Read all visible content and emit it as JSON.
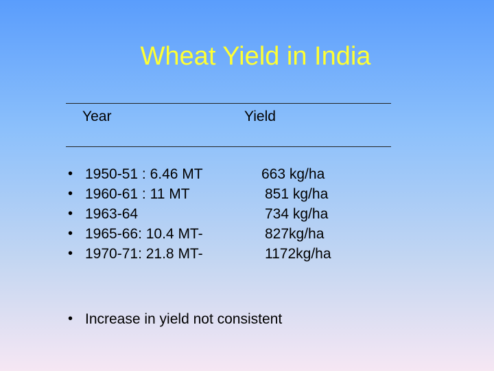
{
  "slide": {
    "title": "Wheat Yield in India",
    "table_header": {
      "year": "Year",
      "yield": "Yield"
    },
    "rows": [
      {
        "period": "1950-51 : 6.46 MT",
        "yield": "663 kg/ha"
      },
      {
        "period": "1960-61 : 11 MT",
        "yield": "851 kg/ha"
      },
      {
        "period": "1963-64",
        "yield": "734 kg/ha"
      },
      {
        "period": "1965-66: 10.4 MT-",
        "yield": "827kg/ha"
      },
      {
        "period": "1970-71: 21.8 MT-",
        "yield": "1172kg/ha"
      }
    ],
    "bullet_glyph": "•",
    "note": "Increase in yield not consistent",
    "colors": {
      "title": "#ffff33",
      "background_top": "#5a9dfc",
      "background_bottom": "#f6e7f3",
      "text": "#000000"
    }
  }
}
